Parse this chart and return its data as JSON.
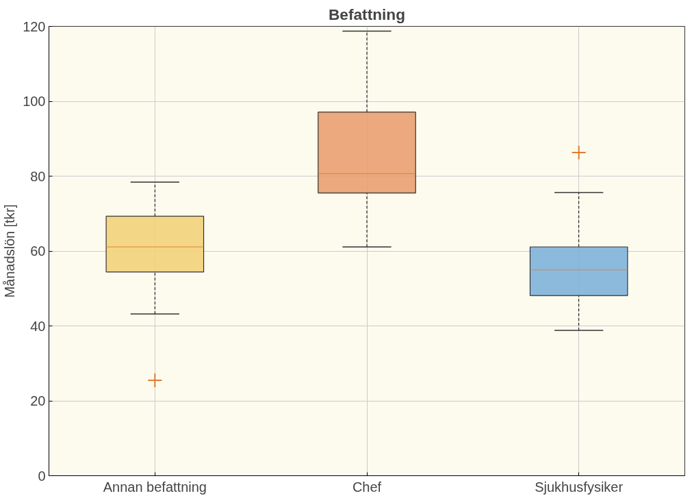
{
  "chart_data": {
    "type": "box",
    "title": "Befattning",
    "ylabel": "Månadslön [tkr]",
    "categories": [
      "Annan befattning",
      "Chef",
      "Sjukhusfysiker"
    ],
    "colors": [
      "#f2d27a",
      "#e9a070",
      "#80b3da"
    ],
    "boxes": [
      {
        "low": 43.2,
        "q1": 54.4,
        "median": 61.1,
        "q3": 69.3,
        "high": 78.4,
        "outliers": [
          25.5
        ]
      },
      {
        "low": 61.1,
        "q1": 75.5,
        "median": 80.7,
        "q3": 97.1,
        "high": 118.7
      },
      {
        "low": 38.8,
        "q1": 48.1,
        "median": 55.0,
        "q3": 61.1,
        "high": 75.6,
        "outliers": [
          86.3
        ]
      }
    ],
    "ylim": [
      0,
      120
    ],
    "yticks": [
      0,
      20,
      40,
      60,
      80,
      100,
      120
    ],
    "grid": true
  }
}
